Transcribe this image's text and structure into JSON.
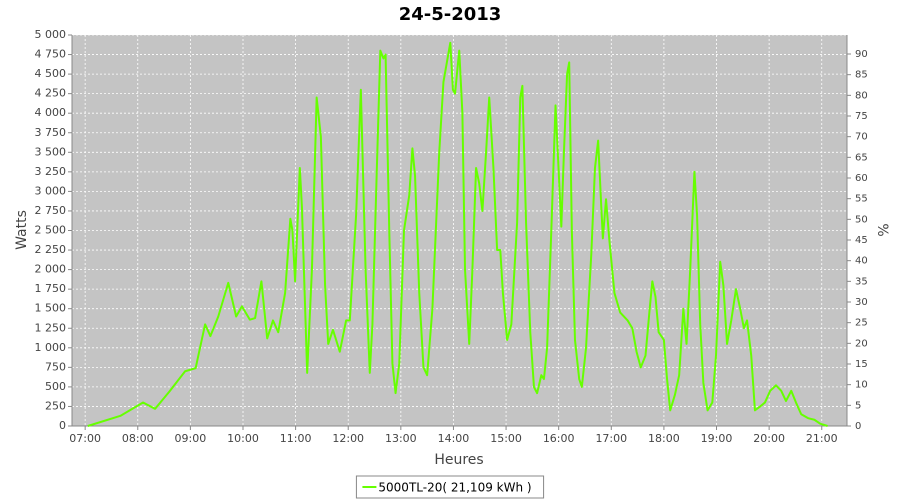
{
  "chart_data": {
    "type": "line",
    "title": "24-5-2013",
    "xlabel": "Heures",
    "ylabel": "Watts",
    "y2label": "%",
    "grid": true,
    "legend": "bottom",
    "xlim": [
      6.75,
      21.48
    ],
    "xticks": [
      {
        "value": 7,
        "label": "07:00"
      },
      {
        "value": 8,
        "label": "08:00"
      },
      {
        "value": 9,
        "label": "09:00"
      },
      {
        "value": 10,
        "label": "10:00"
      },
      {
        "value": 11,
        "label": "11:00"
      },
      {
        "value": 12,
        "label": "12:00"
      },
      {
        "value": 13,
        "label": "13:00"
      },
      {
        "value": 14,
        "label": "14:00"
      },
      {
        "value": 15,
        "label": "15:00"
      },
      {
        "value": 16,
        "label": "16:00"
      },
      {
        "value": 17,
        "label": "17:00"
      },
      {
        "value": 18,
        "label": "18:00"
      },
      {
        "value": 19,
        "label": "19:00"
      },
      {
        "value": 20,
        "label": "20:00"
      },
      {
        "value": 21,
        "label": "21:00"
      }
    ],
    "ylim": [
      0,
      5000
    ],
    "yticks": [
      0,
      250,
      500,
      750,
      {
        "value": 1000,
        "label": "1 000"
      },
      {
        "value": 1250,
        "label": "1 250"
      },
      {
        "value": 1500,
        "label": "1 500"
      },
      {
        "value": 1750,
        "label": "1 750"
      },
      {
        "value": 2000,
        "label": "2 000"
      },
      {
        "value": 2250,
        "label": "2 250"
      },
      {
        "value": 2500,
        "label": "2 500"
      },
      {
        "value": 2750,
        "label": "2 750"
      },
      {
        "value": 3000,
        "label": "3 000"
      },
      {
        "value": 3250,
        "label": "3 250"
      },
      {
        "value": 3500,
        "label": "3 500"
      },
      {
        "value": 3750,
        "label": "3 750"
      },
      {
        "value": 4000,
        "label": "4 000"
      },
      {
        "value": 4250,
        "label": "4 250"
      },
      {
        "value": 4500,
        "label": "4 500"
      },
      {
        "value": 4750,
        "label": "4 750"
      },
      {
        "value": 5000,
        "label": "5 000"
      }
    ],
    "y2lim": [
      0,
      94.6
    ],
    "y2ticks": [
      0,
      5,
      10,
      15,
      20,
      25,
      30,
      35,
      40,
      45,
      50,
      55,
      60,
      65,
      70,
      75,
      80,
      85,
      90
    ],
    "x": [
      7.05,
      7.67,
      8.1,
      8.33,
      8.6,
      8.9,
      9.1,
      9.28,
      9.38,
      9.53,
      9.72,
      9.87,
      9.98,
      10.13,
      10.23,
      10.35,
      10.46,
      10.57,
      10.67,
      10.8,
      10.9,
      10.94,
      10.99,
      11.08,
      11.12,
      11.22,
      11.31,
      11.4,
      11.48,
      11.56,
      11.62,
      11.71,
      11.84,
      11.96,
      12.03,
      12.15,
      12.24,
      12.33,
      12.41,
      12.46,
      12.54,
      12.61,
      12.67,
      12.71,
      12.78,
      12.84,
      12.9,
      12.97,
      13.06,
      13.16,
      13.22,
      13.27,
      13.35,
      13.43,
      13.5,
      13.6,
      13.73,
      13.81,
      13.94,
      13.99,
      14.03,
      14.11,
      14.17,
      14.22,
      14.3,
      14.36,
      14.43,
      14.49,
      14.55,
      14.62,
      14.68,
      14.76,
      14.83,
      14.89,
      14.94,
      15.02,
      15.1,
      15.21,
      15.27,
      15.31,
      15.38,
      15.46,
      15.53,
      15.59,
      15.67,
      15.72,
      15.78,
      15.86,
      15.94,
      15.99,
      16.05,
      16.1,
      16.16,
      16.2,
      16.25,
      16.31,
      16.39,
      16.44,
      16.52,
      16.62,
      16.69,
      16.75,
      16.81,
      16.84,
      16.9,
      16.96,
      17.06,
      17.17,
      17.31,
      17.4,
      17.48,
      17.56,
      17.65,
      17.73,
      17.78,
      17.84,
      17.9,
      18.0,
      18.06,
      18.12,
      18.21,
      18.29,
      18.37,
      18.43,
      18.5,
      18.58,
      18.63,
      18.69,
      18.75,
      18.83,
      18.92,
      18.99,
      19.07,
      19.13,
      19.2,
      19.28,
      19.37,
      19.45,
      19.52,
      19.58,
      19.66,
      19.73,
      19.83,
      19.92,
      20.02,
      20.13,
      20.23,
      20.32,
      20.42,
      20.51,
      20.61,
      20.74,
      20.86,
      20.97,
      21.11
    ],
    "series": [
      {
        "name": "5000TL-20( 21,109 kWh )",
        "color": "#66ff00",
        "values": [
          0,
          130,
          300,
          220,
          440,
          700,
          740,
          1300,
          1150,
          1400,
          1830,
          1400,
          1530,
          1360,
          1380,
          1850,
          1120,
          1350,
          1200,
          1700,
          2650,
          2500,
          1850,
          3300,
          2800,
          680,
          2000,
          4200,
          3700,
          1800,
          1050,
          1230,
          950,
          1350,
          1350,
          2700,
          4300,
          2000,
          680,
          1300,
          3200,
          4800,
          4700,
          4750,
          2500,
          800,
          420,
          800,
          2500,
          2950,
          3550,
          3200,
          1700,
          750,
          650,
          1500,
          3500,
          4400,
          4900,
          4300,
          4250,
          4800,
          4000,
          2000,
          1050,
          2000,
          3300,
          3100,
          2750,
          3500,
          4200,
          3300,
          2250,
          2250,
          1700,
          1100,
          1300,
          2600,
          4200,
          4350,
          2600,
          1200,
          500,
          420,
          650,
          600,
          1000,
          2500,
          4100,
          3400,
          2550,
          3500,
          4500,
          4650,
          2500,
          1100,
          600,
          500,
          1000,
          2200,
          3300,
          3650,
          2800,
          2400,
          2900,
          2400,
          1700,
          1450,
          1350,
          1250,
          950,
          750,
          900,
          1500,
          1850,
          1650,
          1200,
          1100,
          600,
          200,
          400,
          650,
          1500,
          1050,
          2000,
          3250,
          2700,
          1300,
          550,
          200,
          300,
          900,
          2100,
          1800,
          1050,
          1350,
          1750,
          1500,
          1250,
          1350,
          900,
          200,
          250,
          300,
          450,
          520,
          450,
          320,
          450,
          300,
          150,
          100,
          80,
          30,
          0
        ]
      }
    ]
  }
}
